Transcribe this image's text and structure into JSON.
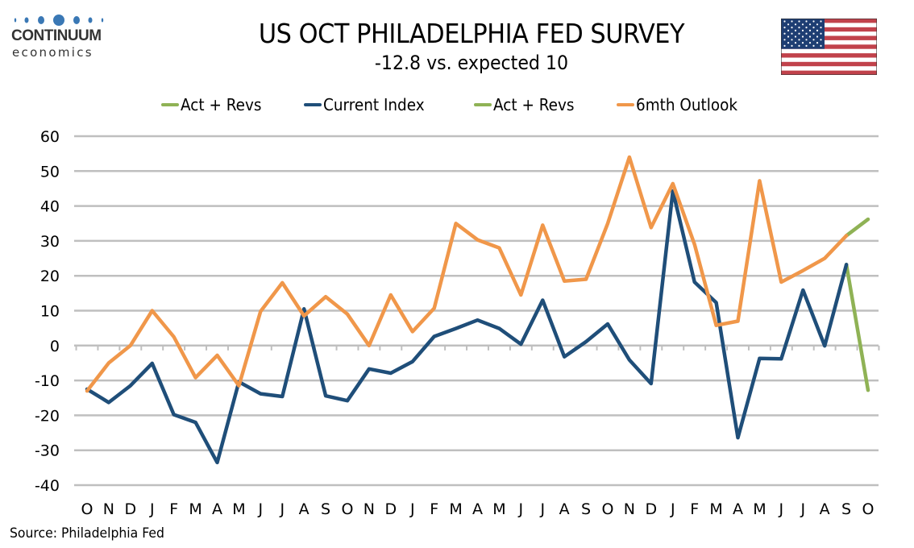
{
  "logo": {
    "name": "CONTINUUM",
    "sub": "economics",
    "color": "#3a78b5"
  },
  "header": {
    "title": "US OCT PHILADELPHIA FED SURVEY",
    "subtitle": "-12.8 vs. expected 10",
    "flag_icon": "us-flag-icon"
  },
  "source": "Source: Philadelphia Fed",
  "chart_data": {
    "type": "line",
    "title": "US OCT PHILADELPHIA FED SURVEY",
    "subtitle": "-12.8 vs. expected 10",
    "xlabel": "",
    "ylabel": "",
    "ylim": [
      -40,
      60
    ],
    "yticks": [
      60,
      50,
      40,
      30,
      20,
      10,
      0,
      -10,
      -20,
      -30,
      -40
    ],
    "grid": true,
    "legend_position": "top",
    "categories": [
      "O",
      "N",
      "D",
      "J",
      "F",
      "M",
      "A",
      "M",
      "J",
      "J",
      "A",
      "S",
      "O",
      "N",
      "D",
      "J",
      "F",
      "M",
      "A",
      "M",
      "J",
      "J",
      "A",
      "S",
      "O",
      "N",
      "D",
      "J",
      "F",
      "M",
      "A",
      "M",
      "J",
      "J",
      "A",
      "S",
      "O"
    ],
    "legend": [
      {
        "name": "Act + Revs",
        "color": "#8fb255"
      },
      {
        "name": "Current Index",
        "color": "#1f4e79"
      },
      {
        "name": "Act + Revs",
        "color": "#8fb255"
      },
      {
        "name": "6mth Outlook",
        "color": "#f0974a"
      }
    ],
    "series": [
      {
        "name": "Current Index",
        "color": "#1f4e79",
        "values": [
          -12.5,
          -16.3,
          -11.5,
          -5.1,
          -19.8,
          -22,
          -33.5,
          -10.4,
          -13.8,
          -14.6,
          10.5,
          -14.4,
          -15.8,
          -6.7,
          -7.9,
          -4.6,
          2.6,
          4.9,
          7.3,
          4.9,
          0.4,
          13,
          -3.2,
          1.1,
          6.2,
          -4.1,
          -10.9,
          44.3,
          18.2,
          12.3,
          -26.4,
          -3.7,
          -3.8,
          15.9,
          -0.1,
          23.2,
          null
        ]
      },
      {
        "name": "6mth Outlook",
        "color": "#f0974a",
        "values": [
          -13,
          -5,
          0,
          10,
          2.5,
          -9.2,
          -2.8,
          -11.5,
          9.8,
          18,
          8.5,
          14,
          9,
          0,
          14.5,
          4,
          10.7,
          35,
          30.3,
          28,
          14.5,
          34.5,
          18.5,
          19,
          35,
          54,
          33.8,
          46.4,
          29,
          5.8,
          7,
          47.2,
          18.2,
          21.5,
          25,
          31.5,
          null
        ]
      },
      {
        "name": "Act + Revs (Current Index)",
        "color": "#8fb255",
        "values": [
          null,
          null,
          null,
          null,
          null,
          null,
          null,
          null,
          null,
          null,
          null,
          null,
          null,
          null,
          null,
          null,
          null,
          null,
          null,
          null,
          null,
          null,
          null,
          null,
          null,
          null,
          null,
          null,
          null,
          null,
          null,
          null,
          null,
          null,
          null,
          23.2,
          -12.8
        ]
      },
      {
        "name": "Act + Revs (6mth Outlook)",
        "color": "#8fb255",
        "values": [
          null,
          null,
          null,
          null,
          null,
          null,
          null,
          null,
          null,
          null,
          null,
          null,
          null,
          null,
          null,
          null,
          null,
          null,
          null,
          null,
          null,
          null,
          null,
          null,
          null,
          null,
          null,
          null,
          null,
          null,
          null,
          null,
          null,
          null,
          null,
          31.5,
          36.2
        ]
      }
    ]
  }
}
